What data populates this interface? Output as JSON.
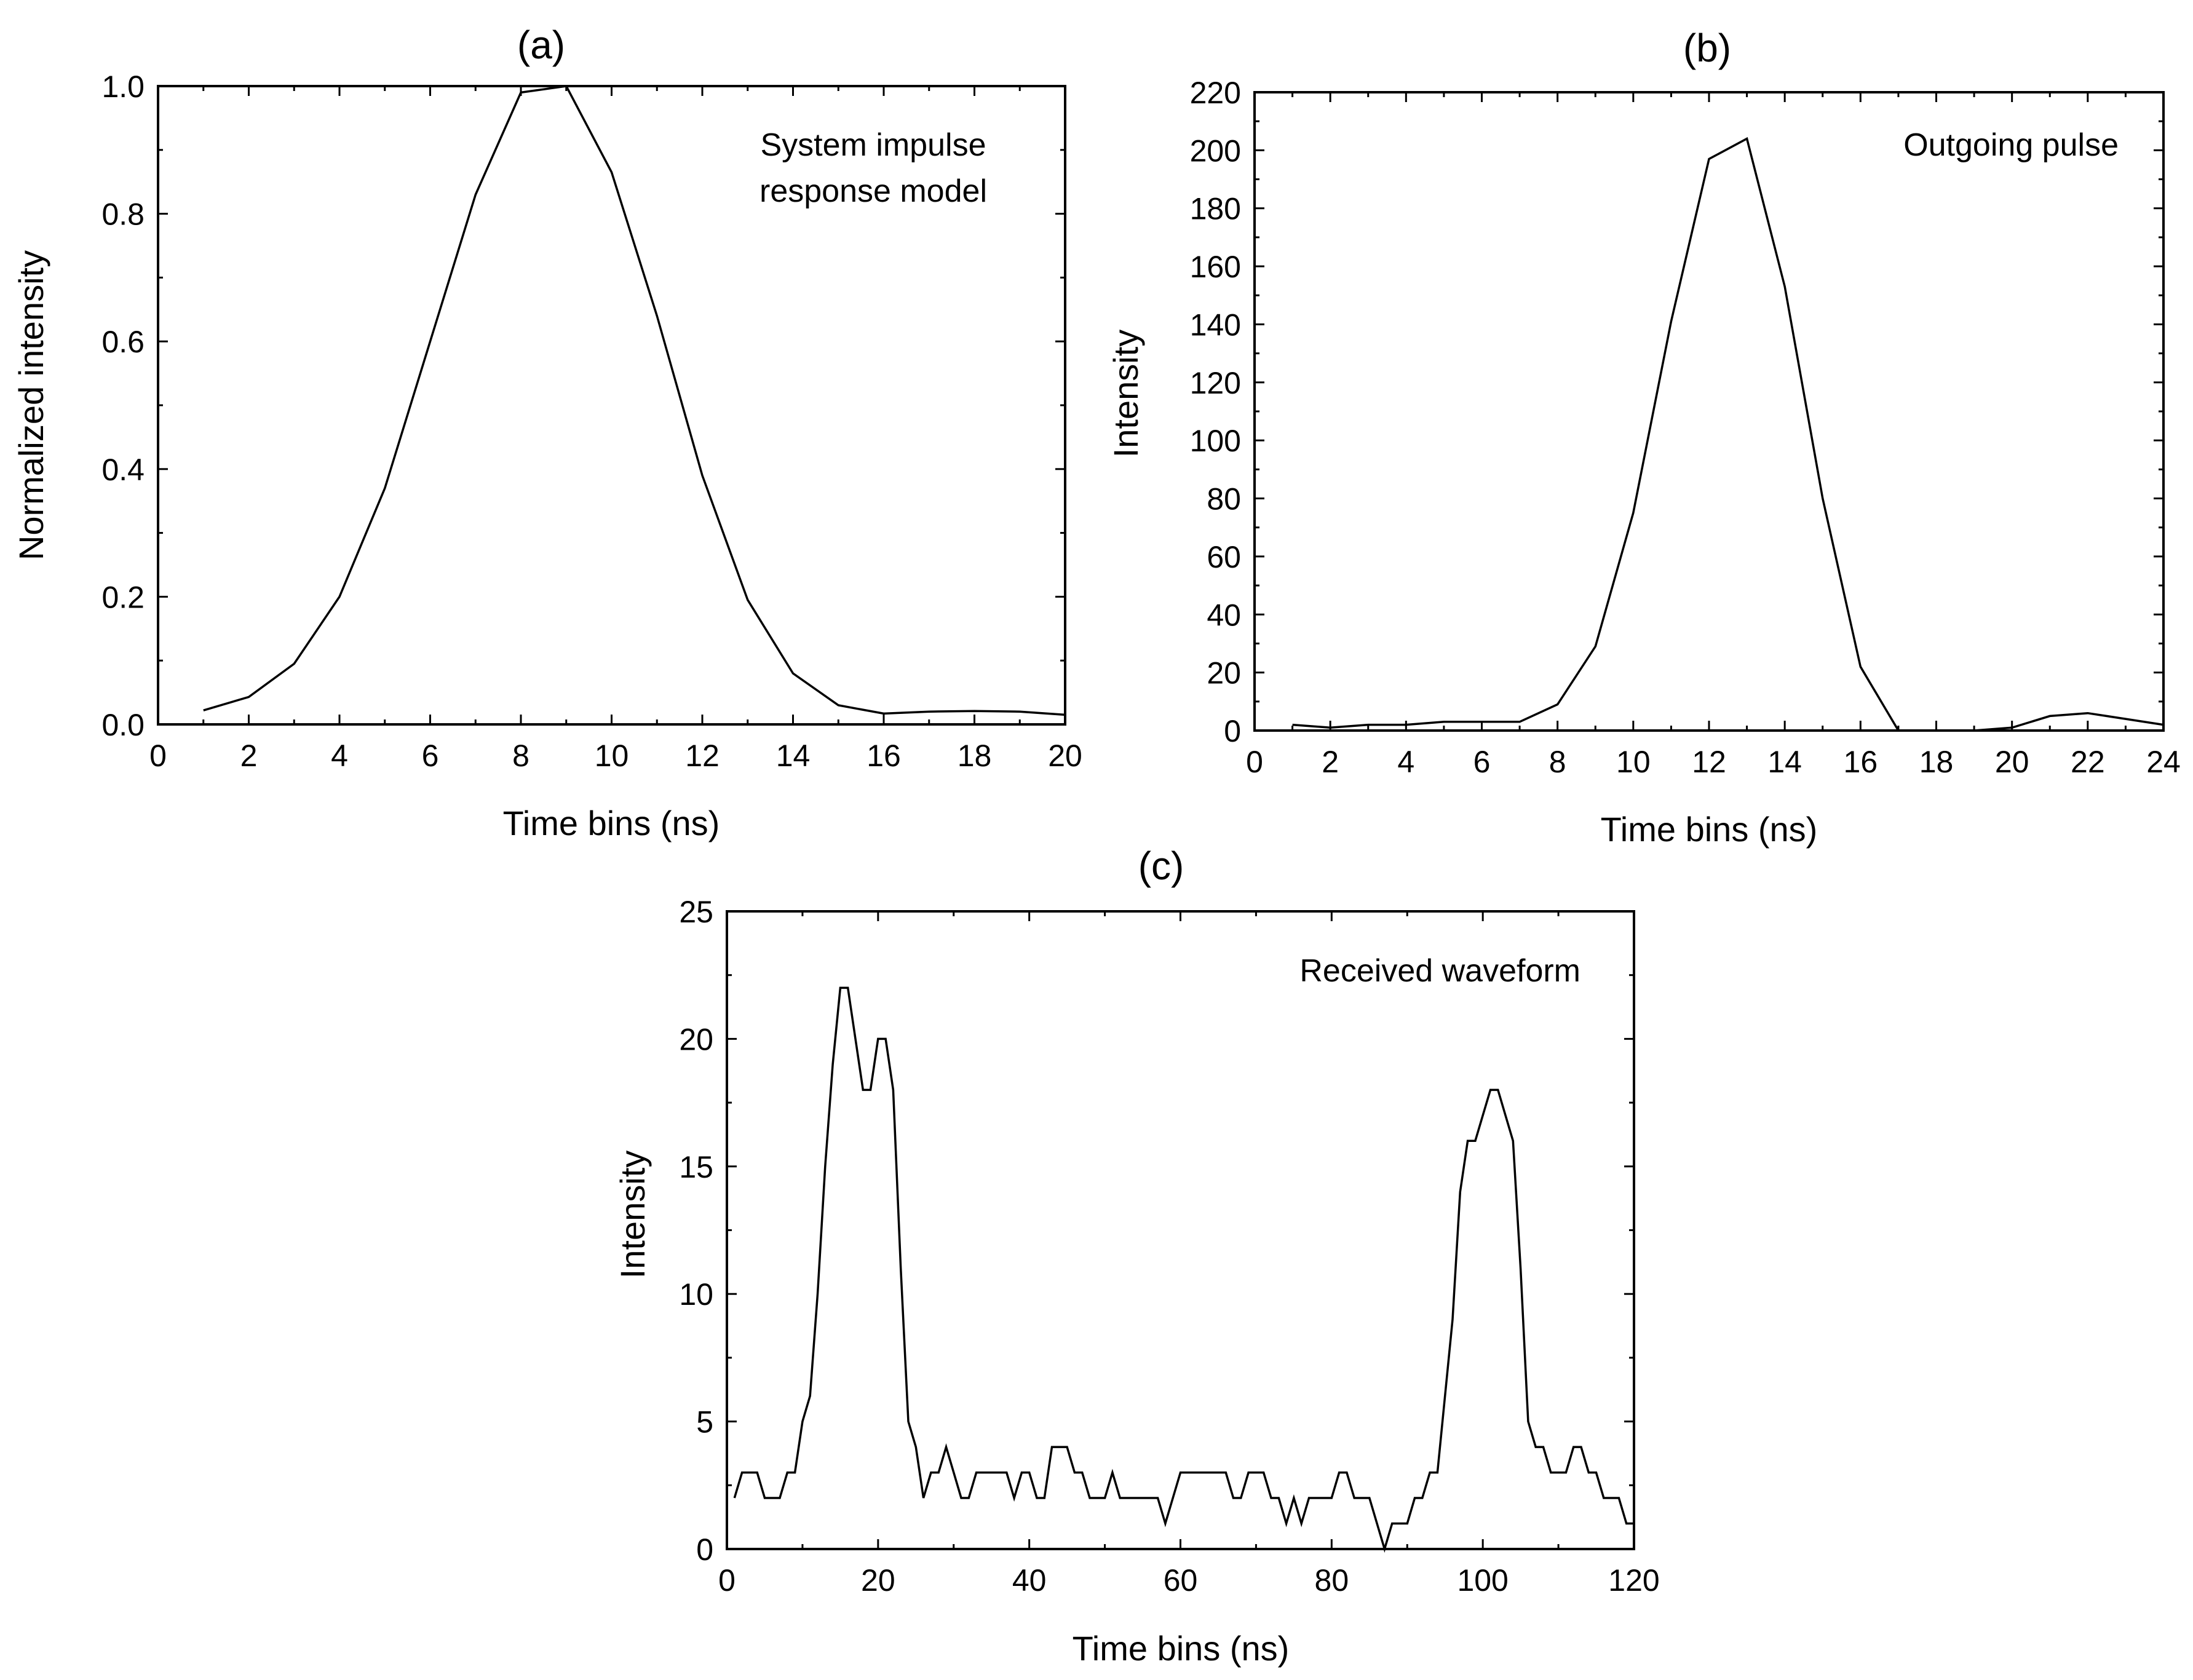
{
  "chart_data": [
    {
      "id": "a",
      "type": "line",
      "panel_label": "(a)",
      "annotation": [
        "System impulse",
        "response model"
      ],
      "xlabel": "Time bins (ns)",
      "ylabel": "Normalized intensity",
      "xlim": [
        0,
        20
      ],
      "ylim": [
        0,
        1.0
      ],
      "xticks": [
        0,
        2,
        4,
        6,
        8,
        10,
        12,
        14,
        16,
        18,
        20
      ],
      "yticks": [
        0.0,
        0.2,
        0.4,
        0.6,
        0.8,
        1.0
      ],
      "ytick_labels": [
        "0.0",
        "0.2",
        "0.4",
        "0.6",
        "0.8",
        "1.0"
      ],
      "x": [
        1,
        2,
        3,
        4,
        5,
        6,
        7,
        8,
        9,
        10,
        11,
        12,
        13,
        14,
        15,
        16,
        17,
        18,
        19,
        20
      ],
      "y": [
        0.022,
        0.043,
        0.095,
        0.2,
        0.37,
        0.6,
        0.83,
        0.99,
        1.0,
        0.865,
        0.64,
        0.39,
        0.195,
        0.08,
        0.03,
        0.017,
        0.02,
        0.021,
        0.02,
        0.015
      ]
    },
    {
      "id": "b",
      "type": "line",
      "panel_label": "(b)",
      "annotation": [
        "Outgoing pulse"
      ],
      "xlabel": "Time bins (ns)",
      "ylabel": "Intensity",
      "xlim": [
        0,
        24
      ],
      "ylim": [
        0,
        220
      ],
      "xticks": [
        0,
        2,
        4,
        6,
        8,
        10,
        12,
        14,
        16,
        18,
        20,
        22,
        24
      ],
      "yticks": [
        0,
        20,
        40,
        60,
        80,
        100,
        120,
        140,
        160,
        180,
        200,
        220
      ],
      "ytick_labels": [
        "0",
        "20",
        "40",
        "60",
        "80",
        "100",
        "120",
        "140",
        "160",
        "180",
        "200",
        "220"
      ],
      "x": [
        1,
        2,
        3,
        4,
        5,
        6,
        7,
        8,
        9,
        10,
        11,
        12,
        13,
        14,
        15,
        16,
        17,
        18,
        19,
        20,
        21,
        22,
        23,
        24
      ],
      "y": [
        2,
        1,
        2,
        2,
        3,
        3,
        3,
        9,
        29,
        75,
        141,
        197,
        204,
        153,
        80,
        22,
        0,
        0,
        0,
        1,
        5,
        6,
        4,
        2
      ]
    },
    {
      "id": "c",
      "type": "line",
      "panel_label": "(c)",
      "annotation": [
        "Received waveform"
      ],
      "xlabel": "Time bins (ns)",
      "ylabel": "Intensity",
      "xlim": [
        0,
        120
      ],
      "ylim": [
        0,
        25
      ],
      "xticks": [
        0,
        20,
        40,
        60,
        80,
        100,
        120
      ],
      "yticks": [
        0,
        5,
        10,
        15,
        20,
        25
      ],
      "ytick_labels": [
        "0",
        "5",
        "10",
        "15",
        "20",
        "25"
      ],
      "x": [
        1,
        2,
        3,
        4,
        5,
        6,
        7,
        8,
        9,
        10,
        11,
        12,
        13,
        14,
        15,
        16,
        17,
        18,
        19,
        20,
        21,
        22,
        23,
        24,
        25,
        26,
        27,
        28,
        29,
        30,
        31,
        32,
        33,
        34,
        35,
        36,
        37,
        38,
        39,
        40,
        41,
        42,
        43,
        44,
        45,
        46,
        47,
        48,
        49,
        50,
        51,
        52,
        53,
        54,
        55,
        56,
        57,
        58,
        59,
        60,
        61,
        62,
        63,
        64,
        65,
        66,
        67,
        68,
        69,
        70,
        71,
        72,
        73,
        74,
        75,
        76,
        77,
        78,
        79,
        80,
        81,
        82,
        83,
        84,
        85,
        86,
        87,
        88,
        89,
        90,
        91,
        92,
        93,
        94,
        95,
        96,
        97,
        98,
        99,
        100,
        101,
        102,
        103,
        104,
        105,
        106,
        107,
        108,
        109,
        110,
        111,
        112,
        113,
        114,
        115,
        116,
        117,
        118,
        119,
        120
      ],
      "y": [
        2,
        3,
        3,
        3,
        2,
        2,
        2,
        3,
        3,
        5,
        6,
        10,
        15,
        19,
        22,
        22,
        20,
        18,
        18,
        20,
        20,
        18,
        11,
        5,
        4,
        2,
        3,
        3,
        4,
        3,
        2,
        2,
        3,
        3,
        3,
        3,
        3,
        2,
        3,
        3,
        2,
        2,
        4,
        4,
        4,
        3,
        3,
        2,
        2,
        2,
        3,
        2,
        2,
        2,
        2,
        2,
        2,
        1,
        2,
        3,
        3,
        3,
        3,
        3,
        3,
        3,
        2,
        2,
        3,
        3,
        3,
        2,
        2,
        1,
        2,
        1,
        2,
        2,
        2,
        2,
        3,
        3,
        2,
        2,
        2,
        1,
        0,
        1,
        1,
        1,
        2,
        2,
        3,
        3,
        6,
        9,
        14,
        16,
        16,
        17,
        18,
        18,
        17,
        16,
        11,
        5,
        4,
        4,
        3,
        3,
        3,
        4,
        4,
        3,
        3,
        2,
        2,
        2,
        1,
        1
      ]
    }
  ]
}
